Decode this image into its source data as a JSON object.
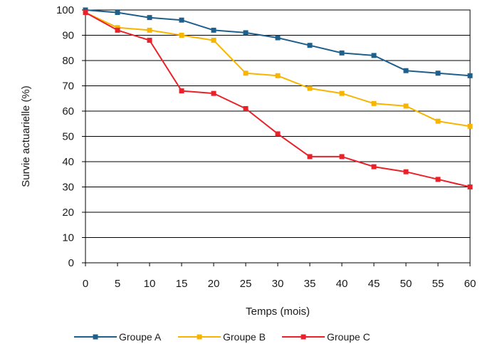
{
  "chart_data": {
    "type": "line",
    "xlabel": "Temps (mois)",
    "ylabel": "Survie actuarielle (%)",
    "xlim": [
      0,
      60
    ],
    "ylim": [
      0,
      100
    ],
    "x_ticks": [
      0,
      5,
      10,
      15,
      20,
      25,
      30,
      35,
      40,
      45,
      50,
      55,
      60
    ],
    "y_ticks": [
      0,
      10,
      20,
      30,
      40,
      50,
      60,
      70,
      80,
      90,
      100
    ],
    "grid": "horizontal",
    "legend_position": "bottom",
    "x": [
      0,
      5,
      10,
      15,
      20,
      25,
      30,
      35,
      40,
      45,
      50,
      55,
      60
    ],
    "series": [
      {
        "name": "Groupe A",
        "color": "#1f5f8b",
        "values": [
          100,
          99,
          97,
          96,
          92,
          91,
          89,
          86,
          83,
          82,
          76,
          75,
          74
        ]
      },
      {
        "name": "Groupe B",
        "color": "#f7b500",
        "values": [
          99,
          93,
          92,
          90,
          88,
          75,
          74,
          69,
          67,
          63,
          62,
          56,
          54
        ]
      },
      {
        "name": "Groupe C",
        "color": "#e8212a",
        "values": [
          99,
          92,
          88,
          68,
          67,
          61,
          51,
          42,
          42,
          38,
          36,
          33,
          30
        ]
      }
    ]
  }
}
